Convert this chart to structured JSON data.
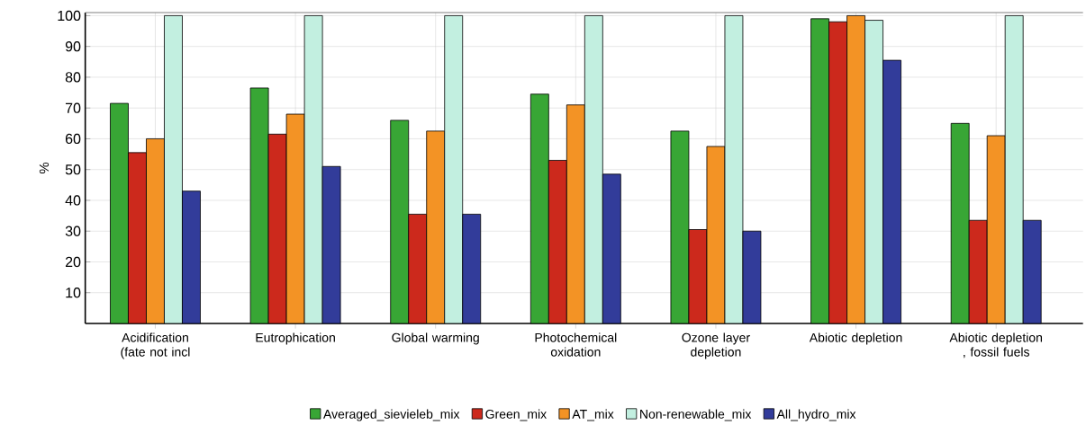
{
  "chart_data": {
    "type": "bar",
    "ylabel": "%",
    "categories": [
      "Acidification (fate not incl",
      "Eutrophication",
      "Global warming",
      "Photochemical oxidation",
      "Ozone layer depletion",
      "Abiotic depletion",
      "Abiotic depletion , fossil fuels"
    ],
    "series": [
      {
        "name": "Averaged_sievieleb_mix",
        "color": "#38a635",
        "values": [
          71.5,
          76.5,
          66,
          74.5,
          62.5,
          99,
          65
        ]
      },
      {
        "name": "Green_mix",
        "color": "#cc291c",
        "values": [
          55.5,
          61.5,
          35.5,
          53,
          30.5,
          98,
          33.5
        ]
      },
      {
        "name": "AT_mix",
        "color": "#f39325",
        "values": [
          60,
          68,
          62.5,
          71,
          57.5,
          100,
          61
        ]
      },
      {
        "name": "Non-renewable_mix",
        "color": "#c2efe0",
        "values": [
          100,
          100,
          100,
          100,
          100,
          98.5,
          100
        ]
      },
      {
        "name": "All_hydro_mix",
        "color": "#323c9a",
        "values": [
          43,
          51,
          35.5,
          48.5,
          30,
          85.5,
          33.5
        ]
      }
    ],
    "ylim": [
      0,
      101
    ],
    "yticks": [
      10,
      20,
      30,
      40,
      50,
      60,
      70,
      80,
      90,
      100
    ],
    "grid": true,
    "legend": "bottom"
  }
}
